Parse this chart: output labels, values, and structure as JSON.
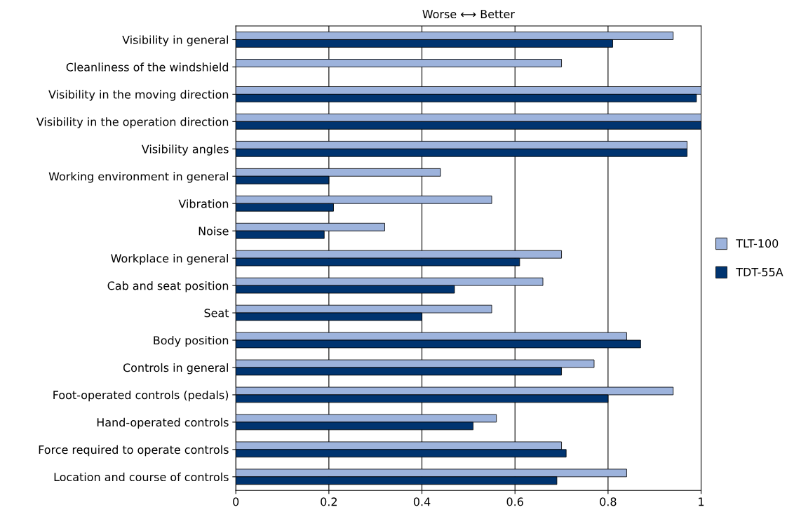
{
  "chart_data": {
    "type": "bar",
    "orientation": "horizontal",
    "title": "Worse ⟷ Better",
    "categories": [
      "Visibility in general",
      "Cleanliness of the windshield",
      "Visibility in the moving direction",
      "Visibility in the operation direction",
      "Visibility angles",
      "Working environment in general",
      "Vibration",
      "Noise",
      "Workplace in general",
      "Cab and seat position",
      "Seat",
      "Body position",
      "Controls in general",
      "Foot-operated controls (pedals)",
      "Hand-operated controls",
      "Force required to operate controls",
      "Location and course of controls"
    ],
    "series": [
      {
        "name": "TLT-100",
        "color": "#9db3dc",
        "values": [
          0.94,
          0.7,
          1.0,
          1.0,
          0.97,
          0.44,
          0.55,
          0.32,
          0.7,
          0.66,
          0.55,
          0.84,
          0.77,
          0.94,
          0.56,
          0.7,
          0.84
        ]
      },
      {
        "name": "TDT-55A",
        "color": "#003470",
        "values": [
          0.81,
          null,
          0.99,
          1.0,
          0.97,
          0.2,
          0.21,
          0.19,
          0.61,
          0.47,
          0.4,
          0.87,
          0.7,
          0.8,
          0.51,
          0.71,
          0.69
        ]
      }
    ],
    "xlim": [
      0,
      1
    ],
    "xticks": [
      0,
      0.2,
      0.4,
      0.6,
      0.8,
      1
    ],
    "grid": "x",
    "legend": "right"
  }
}
